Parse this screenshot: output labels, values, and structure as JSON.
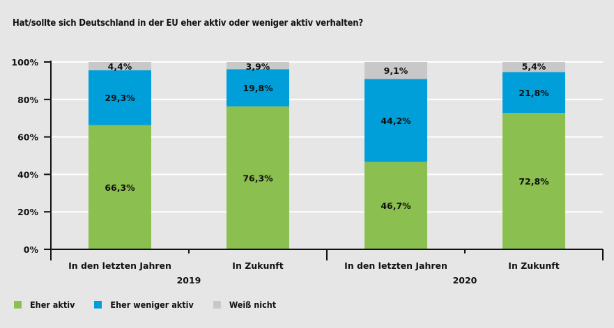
{
  "chart_data": {
    "type": "bar",
    "stacked": true,
    "title": "Hat/sollte sich Deutschland in der EU eher aktiv oder weniger aktiv verhalten?",
    "categories": [
      "In den letzten Jahren",
      "In Zukunft",
      "In den letzten Jahren",
      "In Zukunft"
    ],
    "groups": [
      {
        "label": "2019",
        "categories": [
          0,
          1
        ]
      },
      {
        "label": "2020",
        "categories": [
          2,
          3
        ]
      }
    ],
    "series": [
      {
        "name": "Eher aktiv",
        "color": "#8bbf4f",
        "values": [
          66.3,
          76.3,
          46.7,
          72.8
        ],
        "labels": [
          "66,3%",
          "76,3%",
          "46,7%",
          "72,8%"
        ]
      },
      {
        "name": "Eher weniger aktiv",
        "color": "#009fd9",
        "values": [
          29.3,
          19.8,
          44.2,
          21.8
        ],
        "labels": [
          "29,3%",
          "19,8%",
          "44,2%",
          "21,8%"
        ]
      },
      {
        "name": "Weiß nicht",
        "color": "#c8c8c8",
        "values": [
          4.4,
          3.9,
          9.1,
          5.4
        ],
        "labels": [
          "4,4%",
          "3,9%",
          "9,1%",
          "5,4%"
        ]
      }
    ],
    "ylim": [
      0,
      100
    ],
    "yticks": [
      "0%",
      "20%",
      "40%",
      "60%",
      "80%",
      "100%"
    ],
    "grid": true,
    "legend": "bottom-left"
  }
}
